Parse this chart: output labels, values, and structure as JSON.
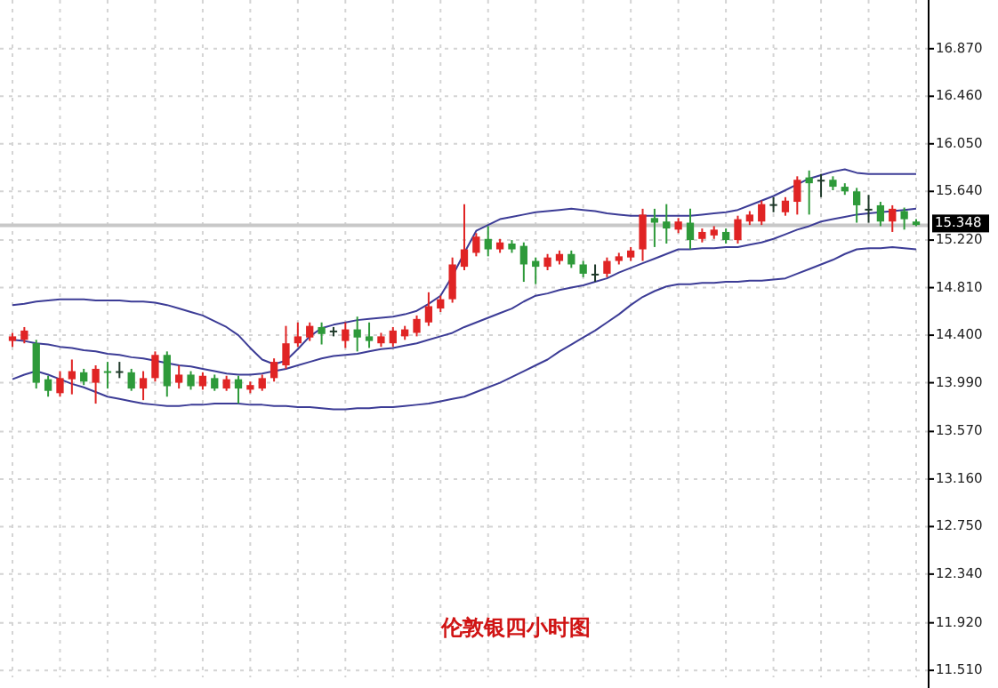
{
  "chart_data": {
    "type": "candlestick",
    "title": "伦敦银四小时图",
    "categories": [
      null,
      null,
      null,
      null,
      null,
      null,
      null,
      null,
      null,
      null,
      null,
      null,
      null,
      null,
      null,
      null,
      null,
      null,
      null,
      null,
      null,
      null,
      null,
      null,
      null,
      null,
      null,
      null,
      null,
      null,
      null,
      null,
      null,
      null,
      null,
      null,
      null,
      null,
      null,
      null,
      null,
      null,
      null,
      null,
      null,
      null,
      null,
      null,
      null,
      null,
      null,
      null,
      null,
      null,
      null,
      null,
      null,
      null,
      null,
      null,
      null,
      null,
      null,
      null,
      null,
      null,
      null,
      null,
      null,
      null,
      null,
      null,
      null,
      null,
      null,
      null,
      null
    ],
    "ylim": [
      11.45,
      17.29
    ],
    "yticks": [
      {
        "value": 16.87,
        "label": "16.870"
      },
      {
        "value": 16.46,
        "label": "16.460"
      },
      {
        "value": 16.05,
        "label": "16.050"
      },
      {
        "value": 15.64,
        "label": "15.640"
      },
      {
        "value": 15.22,
        "label": "15.220"
      },
      {
        "value": 14.81,
        "label": "14.810"
      },
      {
        "value": 14.4,
        "label": "14.400"
      },
      {
        "value": 13.99,
        "label": "13.990"
      },
      {
        "value": 13.57,
        "label": "13.570"
      },
      {
        "value": 13.16,
        "label": "13.160"
      },
      {
        "value": 12.75,
        "label": "12.750"
      },
      {
        "value": 12.34,
        "label": "12.340"
      },
      {
        "value": 11.92,
        "label": "11.920"
      },
      {
        "value": 11.51,
        "label": "11.510"
      }
    ],
    "grid": true,
    "tick_labels": "y",
    "ohlc": [
      [
        14.35,
        14.42,
        14.3,
        14.39
      ],
      [
        14.36,
        14.47,
        14.33,
        14.44
      ],
      [
        14.33,
        14.36,
        13.94,
        13.99
      ],
      [
        14.02,
        14.05,
        13.87,
        13.92
      ],
      [
        13.9,
        14.09,
        13.87,
        14.03
      ],
      [
        14.02,
        14.19,
        13.89,
        14.09
      ],
      [
        14.08,
        14.11,
        13.97,
        14.0
      ],
      [
        13.99,
        14.14,
        13.81,
        14.11
      ],
      [
        14.09,
        14.17,
        13.94,
        14.08
      ],
      [
        14.09,
        14.17,
        14.03,
        14.09
      ],
      [
        14.08,
        14.11,
        13.92,
        13.94
      ],
      [
        13.94,
        14.09,
        13.84,
        14.03
      ],
      [
        14.03,
        14.26,
        14.0,
        14.23
      ],
      [
        14.23,
        14.26,
        13.87,
        13.96
      ],
      [
        13.99,
        14.14,
        13.94,
        14.06
      ],
      [
        14.06,
        14.09,
        13.93,
        13.96
      ],
      [
        13.96,
        14.08,
        13.93,
        14.05
      ],
      [
        14.03,
        14.06,
        13.92,
        13.94
      ],
      [
        13.94,
        14.05,
        13.92,
        14.02
      ],
      [
        14.02,
        14.05,
        13.81,
        13.94
      ],
      [
        13.93,
        14.0,
        13.9,
        13.97
      ],
      [
        13.94,
        14.06,
        13.92,
        14.03
      ],
      [
        14.03,
        14.2,
        14.0,
        14.17
      ],
      [
        14.14,
        14.48,
        14.11,
        14.33
      ],
      [
        14.33,
        14.51,
        14.3,
        14.39
      ],
      [
        14.38,
        14.51,
        14.35,
        14.48
      ],
      [
        14.47,
        14.51,
        14.32,
        14.41
      ],
      [
        14.44,
        14.47,
        14.39,
        14.44
      ],
      [
        14.35,
        14.51,
        14.29,
        14.45
      ],
      [
        14.45,
        14.56,
        14.26,
        14.38
      ],
      [
        14.39,
        14.51,
        14.29,
        14.35
      ],
      [
        14.33,
        14.42,
        14.3,
        14.39
      ],
      [
        14.33,
        14.47,
        14.3,
        14.44
      ],
      [
        14.39,
        14.48,
        14.36,
        14.45
      ],
      [
        14.42,
        14.57,
        14.39,
        14.54
      ],
      [
        14.51,
        14.77,
        14.48,
        14.65
      ],
      [
        14.63,
        14.74,
        14.6,
        14.71
      ],
      [
        14.71,
        15.07,
        14.68,
        15.01
      ],
      [
        14.99,
        15.53,
        14.96,
        15.14
      ],
      [
        15.11,
        15.28,
        15.08,
        15.25
      ],
      [
        15.23,
        15.34,
        15.08,
        15.14
      ],
      [
        15.14,
        15.23,
        15.11,
        15.2
      ],
      [
        15.19,
        15.22,
        15.11,
        15.14
      ],
      [
        15.17,
        15.2,
        14.86,
        15.01
      ],
      [
        15.04,
        15.07,
        14.84,
        14.99
      ],
      [
        14.99,
        15.1,
        14.96,
        15.07
      ],
      [
        15.04,
        15.13,
        15.01,
        15.1
      ],
      [
        15.1,
        15.13,
        14.98,
        15.01
      ],
      [
        15.01,
        15.04,
        14.9,
        14.93
      ],
      [
        14.93,
        15.01,
        14.86,
        14.93
      ],
      [
        14.93,
        15.07,
        14.9,
        15.04
      ],
      [
        15.04,
        15.11,
        15.01,
        15.08
      ],
      [
        15.07,
        15.16,
        15.04,
        15.13
      ],
      [
        15.14,
        15.49,
        15.04,
        15.44
      ],
      [
        15.41,
        15.49,
        15.16,
        15.37
      ],
      [
        15.38,
        15.53,
        15.19,
        15.32
      ],
      [
        15.31,
        15.41,
        15.28,
        15.38
      ],
      [
        15.37,
        15.49,
        15.14,
        15.22
      ],
      [
        15.23,
        15.32,
        15.2,
        15.29
      ],
      [
        15.26,
        15.34,
        15.23,
        15.31
      ],
      [
        15.29,
        15.32,
        15.19,
        15.22
      ],
      [
        15.22,
        15.43,
        15.19,
        15.4
      ],
      [
        15.38,
        15.47,
        15.35,
        15.44
      ],
      [
        15.38,
        15.56,
        15.35,
        15.53
      ],
      [
        15.53,
        15.59,
        15.46,
        15.53
      ],
      [
        15.46,
        15.59,
        15.43,
        15.56
      ],
      [
        15.55,
        15.77,
        15.44,
        15.74
      ],
      [
        15.76,
        15.82,
        15.44,
        15.71
      ],
      [
        15.74,
        15.79,
        15.59,
        15.74
      ],
      [
        15.74,
        15.77,
        15.65,
        15.68
      ],
      [
        15.68,
        15.71,
        15.61,
        15.64
      ],
      [
        15.64,
        15.67,
        15.37,
        15.52
      ],
      [
        15.49,
        15.61,
        15.37,
        15.49
      ],
      [
        15.52,
        15.55,
        15.34,
        15.38
      ],
      [
        15.38,
        15.52,
        15.29,
        15.49
      ],
      [
        15.47,
        15.5,
        15.31,
        15.4
      ],
      [
        15.38,
        15.4,
        15.34,
        15.35
      ]
    ],
    "colors": [
      "#e02424",
      "#e02424",
      "#2e9a3a",
      "#2e9a3a",
      "#e02424",
      "#e02424",
      "#2e9a3a",
      "#e02424",
      "#2e9a3a",
      "#1f3a2a",
      "#2e9a3a",
      "#e02424",
      "#e02424",
      "#2e9a3a",
      "#e02424",
      "#2e9a3a",
      "#e02424",
      "#2e9a3a",
      "#e02424",
      "#2e9a3a",
      "#e02424",
      "#e02424",
      "#e02424",
      "#e02424",
      "#e02424",
      "#e02424",
      "#2e9a3a",
      "#1f3a2a",
      "#e02424",
      "#2e9a3a",
      "#2e9a3a",
      "#e02424",
      "#e02424",
      "#e02424",
      "#e02424",
      "#e02424",
      "#e02424",
      "#e02424",
      "#e02424",
      "#e02424",
      "#2e9a3a",
      "#e02424",
      "#2e9a3a",
      "#2e9a3a",
      "#2e9a3a",
      "#e02424",
      "#e02424",
      "#2e9a3a",
      "#2e9a3a",
      "#1f3a2a",
      "#e02424",
      "#e02424",
      "#e02424",
      "#e02424",
      "#2e9a3a",
      "#2e9a3a",
      "#e02424",
      "#2e9a3a",
      "#e02424",
      "#e02424",
      "#2e9a3a",
      "#e02424",
      "#e02424",
      "#e02424",
      "#1f3a2a",
      "#e02424",
      "#e02424",
      "#2e9a3a",
      "#1f3a2a",
      "#2e9a3a",
      "#2e9a3a",
      "#2e9a3a",
      "#1f3a2a",
      "#2e9a3a",
      "#e02424",
      "#2e9a3a",
      "#2e9a3a"
    ],
    "series": [
      {
        "type": "line",
        "color": "#3c3c96",
        "values": [
          14.66,
          14.67,
          14.69,
          14.7,
          14.71,
          14.71,
          14.71,
          14.7,
          14.7,
          14.7,
          14.69,
          14.69,
          14.68,
          14.66,
          14.63,
          14.6,
          14.57,
          14.52,
          14.47,
          14.4,
          14.29,
          14.19,
          14.15,
          14.18,
          14.28,
          14.39,
          14.46,
          14.49,
          14.51,
          14.53,
          14.54,
          14.55,
          14.56,
          14.58,
          14.61,
          14.67,
          14.74,
          14.91,
          15.11,
          15.3,
          15.35,
          15.4,
          15.42,
          15.44,
          15.46,
          15.47,
          15.48,
          15.49,
          15.48,
          15.47,
          15.45,
          15.44,
          15.43,
          15.43,
          15.43,
          15.43,
          15.43,
          15.43,
          15.44,
          15.45,
          15.46,
          15.48,
          15.52,
          15.56,
          15.6,
          15.65,
          15.7,
          15.75,
          15.78,
          15.81,
          15.83,
          15.8,
          15.79,
          15.79,
          15.79,
          15.79,
          15.79
        ]
      },
      {
        "type": "line",
        "color": "#3c3c96",
        "values": [
          14.36,
          14.35,
          14.33,
          14.32,
          14.3,
          14.29,
          14.27,
          14.26,
          14.24,
          14.23,
          14.21,
          14.2,
          14.18,
          14.16,
          14.14,
          14.13,
          14.11,
          14.09,
          14.07,
          14.06,
          14.06,
          14.07,
          14.09,
          14.11,
          14.14,
          14.17,
          14.2,
          14.22,
          14.23,
          14.24,
          14.26,
          14.28,
          14.29,
          14.31,
          14.33,
          14.36,
          14.39,
          14.42,
          14.47,
          14.51,
          14.55,
          14.59,
          14.63,
          14.69,
          14.74,
          14.76,
          14.79,
          14.81,
          14.83,
          14.86,
          14.89,
          14.94,
          14.98,
          15.02,
          15.06,
          15.1,
          15.14,
          15.14,
          15.15,
          15.15,
          15.16,
          15.16,
          15.18,
          15.2,
          15.23,
          15.27,
          15.31,
          15.34,
          15.38,
          15.4,
          15.42,
          15.44,
          15.45,
          15.46,
          15.47,
          15.48,
          15.49
        ]
      },
      {
        "type": "line",
        "color": "#3c3c96",
        "values": [
          14.02,
          14.06,
          14.09,
          14.06,
          14.02,
          13.98,
          13.95,
          13.91,
          13.87,
          13.85,
          13.83,
          13.81,
          13.8,
          13.79,
          13.79,
          13.8,
          13.8,
          13.81,
          13.81,
          13.81,
          13.8,
          13.8,
          13.79,
          13.79,
          13.78,
          13.78,
          13.77,
          13.76,
          13.76,
          13.77,
          13.77,
          13.78,
          13.78,
          13.79,
          13.8,
          13.81,
          13.83,
          13.85,
          13.87,
          13.91,
          13.95,
          13.99,
          14.04,
          14.09,
          14.14,
          14.19,
          14.26,
          14.32,
          14.38,
          14.44,
          14.51,
          14.58,
          14.66,
          14.73,
          14.78,
          14.82,
          14.84,
          14.84,
          14.85,
          14.85,
          14.86,
          14.86,
          14.87,
          14.87,
          14.88,
          14.89,
          14.93,
          14.97,
          15.01,
          15.05,
          15.1,
          15.14,
          15.15,
          15.15,
          15.16,
          15.15,
          15.14
        ]
      }
    ],
    "ref_lines": [
      {
        "axis": "y",
        "value": 15.348,
        "label": "15.348",
        "color": "#c8c8c8"
      }
    ]
  }
}
